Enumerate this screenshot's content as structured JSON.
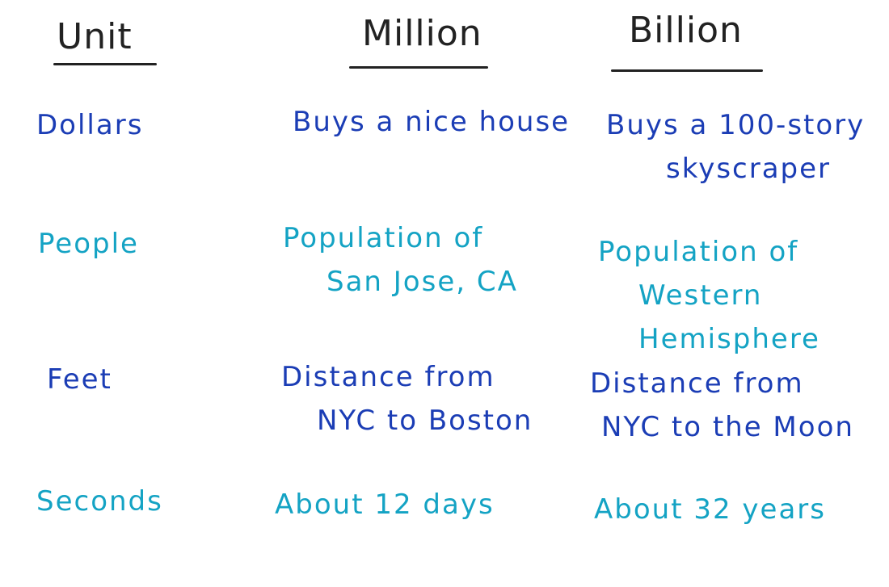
{
  "colors": {
    "header": "#222222",
    "dark_blue": "#1b3db5",
    "teal": "#14a3c4"
  },
  "headers": [
    "Unit",
    "Million",
    "Billion"
  ],
  "rows": [
    {
      "unit": "Dollars",
      "million": [
        "Buys a nice house"
      ],
      "billion": [
        "Buys a 100-story",
        "skyscraper"
      ]
    },
    {
      "unit": "People",
      "million": [
        "Population of",
        "San Jose, CA"
      ],
      "billion": [
        "Population of",
        "Western Hemisphere"
      ]
    },
    {
      "unit": "Feet",
      "million": [
        "Distance from",
        "NYC to Boston"
      ],
      "billion": [
        "Distance from",
        "NYC to the Moon"
      ]
    },
    {
      "unit": "Seconds",
      "million": [
        "About 12 days"
      ],
      "billion": [
        "About 32 years"
      ]
    }
  ]
}
